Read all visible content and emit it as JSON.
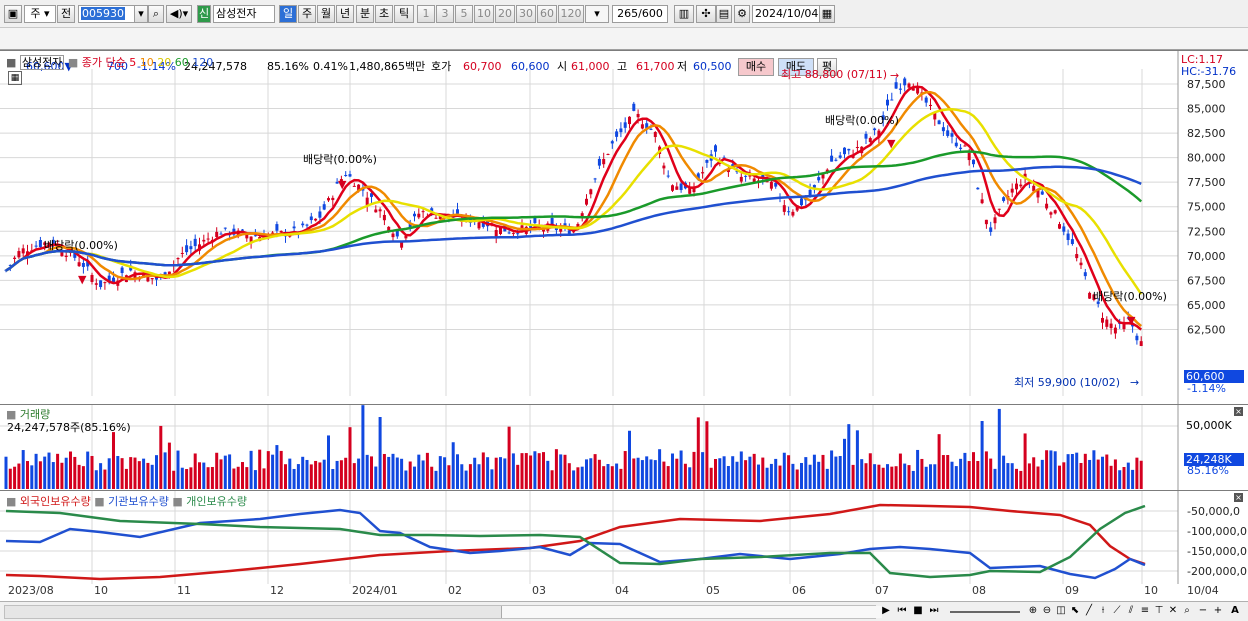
{
  "toolbar": {
    "period_type": "주",
    "prev_label": "전",
    "code": "005930",
    "name_badge": "신",
    "stock_name": "삼성전자",
    "tabs": [
      "일",
      "주",
      "월",
      "년",
      "분",
      "초",
      "틱"
    ],
    "active_tab": "일",
    "intervals": [
      "1",
      "3",
      "5",
      "10",
      "20",
      "30",
      "60",
      "120"
    ],
    "count": "265",
    "count_total": "/600",
    "date": "2024/10/04"
  },
  "quote": {
    "price": "60,600",
    "change_arrow": "▼",
    "change": "700",
    "change_pct": "-1.14%",
    "volume": "24,247,578",
    "vol_ratio": "85.16%",
    "turnover": "0.41%",
    "amount": "1,480,865백만",
    "bid_label": "호가",
    "bid1": "60,700",
    "bid2": "60,600",
    "open_label": "시",
    "open": "61,000",
    "high_label": "고",
    "high": "61,700",
    "low_label": "저",
    "low": "60,500",
    "buy_label": "매수",
    "sell_label": "매도",
    "flat_label": "평"
  },
  "price_pane": {
    "name": "삼성전자",
    "legend_close": "종가 단순",
    "ma": [
      {
        "label": "5",
        "color": "#e0001a"
      },
      {
        "label": "10",
        "color": "#f08a00"
      },
      {
        "label": "20",
        "color": "#e8e000"
      },
      {
        "label": "60",
        "color": "#1a9a2a"
      },
      {
        "label": "120",
        "color": "#2050d0"
      }
    ],
    "lc": "LC:1.17",
    "hc": "HC:-31.76",
    "y_ticks": [
      "87,500",
      "85,000",
      "82,500",
      "80,000",
      "77,500",
      "75,000",
      "72,500",
      "70,000",
      "67,500",
      "65,000",
      "62,500"
    ],
    "current_price": "60,600",
    "current_pct": "-1.14%",
    "high_note": "최고 88,800 (07/11)",
    "low_note": "최저 59,900 (10/02)",
    "dividends": [
      "배당락(0.00%)",
      "배당락(0.00%)",
      "배당락(0.00%)",
      "배당락(0.00%)"
    ]
  },
  "volume_pane": {
    "title": "거래량",
    "value": "24,247,578주(85.16%)",
    "y_ticks": [
      "50,000K"
    ],
    "current": "24,248K",
    "current_pct": "85.16%"
  },
  "flow_pane": {
    "series": [
      {
        "label": "외국인보유수량",
        "color": "#d01818"
      },
      {
        "label": "기관보유수량",
        "color": "#2050d0"
      },
      {
        "label": "개인보유수량",
        "color": "#2a8a4a"
      }
    ],
    "y_ticks": [
      "-50,000,0",
      "-100,000,0",
      "-150,000,0",
      "-200,000,0"
    ]
  },
  "x_axis": [
    "2023/08",
    "10",
    "11",
    "12",
    "2024/01",
    "02",
    "03",
    "04",
    "05",
    "06",
    "07",
    "08",
    "09",
    "10"
  ],
  "x_axis_right": "10/04",
  "colors": {
    "up": "#d4001f",
    "down": "#1048e0",
    "bg": "#ffffff",
    "grid": "#d8d8d8"
  }
}
